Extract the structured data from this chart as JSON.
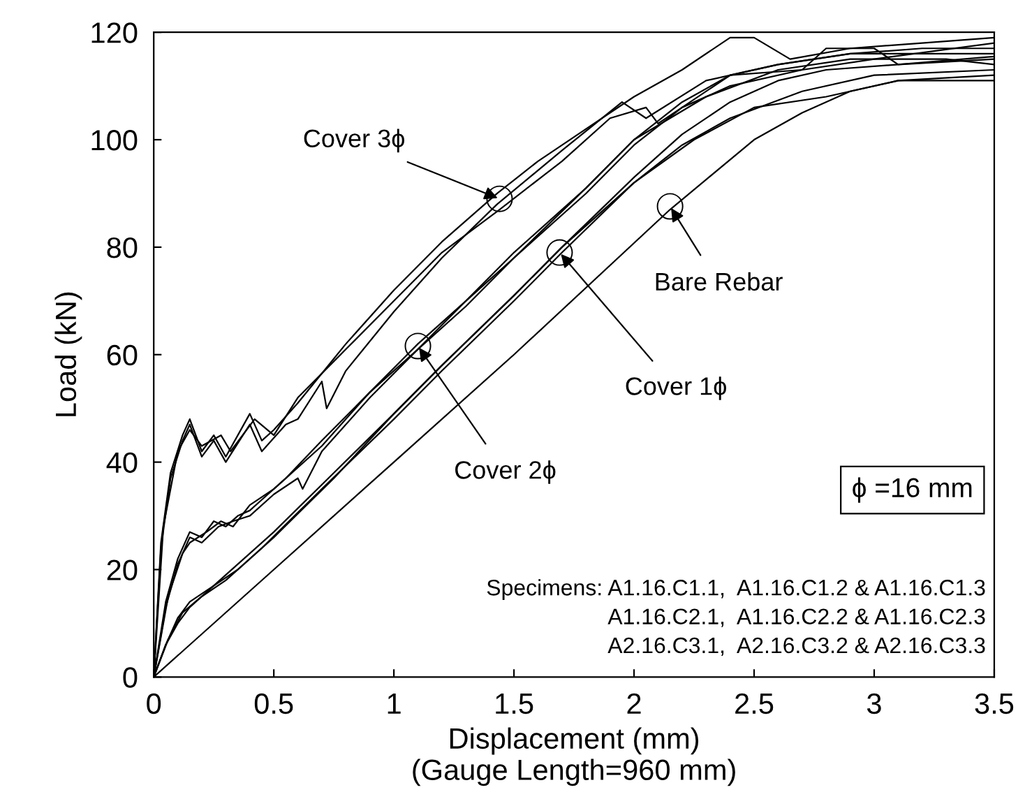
{
  "chart_data": {
    "type": "line",
    "xlabel": "Displacement (mm)\n(Gauge Length=960 mm)",
    "ylabel": "Load (kN)",
    "xlim": [
      0,
      3.5
    ],
    "ylim": [
      0,
      120
    ],
    "xticks": [
      0,
      0.5,
      1,
      1.5,
      2,
      2.5,
      3,
      3.5
    ],
    "yticks": [
      0,
      20,
      40,
      60,
      80,
      100,
      120
    ],
    "grid": false,
    "legend": false,
    "marker": "none",
    "line_style": "solid",
    "series": [
      {
        "color": "#000000",
        "x": [
          0,
          0.03,
          0.07,
          0.12,
          0.15,
          0.2,
          0.25,
          0.3,
          0.4,
          0.45,
          0.5,
          0.6,
          0.8,
          1.0,
          1.2,
          1.43,
          1.6,
          1.8,
          2.0,
          2.2,
          2.4,
          2.5,
          2.65,
          2.9,
          3.2,
          3.5
        ],
        "values": [
          0,
          25,
          38,
          45,
          48,
          42,
          45,
          41,
          49,
          44,
          46,
          51,
          62,
          72,
          81,
          90,
          96,
          102,
          108,
          113,
          119,
          119,
          115,
          117,
          118,
          119
        ]
      },
      {
        "color": "#000000",
        "x": [
          0,
          0.03,
          0.07,
          0.12,
          0.15,
          0.2,
          0.25,
          0.3,
          0.4,
          0.45,
          0.55,
          0.6,
          0.7,
          0.72,
          0.8,
          1.0,
          1.2,
          1.43,
          1.7,
          1.95,
          2.05,
          2.3,
          2.6,
          2.9,
          3.5
        ],
        "values": [
          0,
          24,
          37,
          44,
          47,
          41,
          44,
          40,
          47,
          42,
          47,
          48,
          55,
          50,
          57,
          68,
          78,
          88,
          98,
          107,
          104,
          111,
          114,
          116,
          116
        ]
      },
      {
        "color": "#000000",
        "x": [
          0,
          0.04,
          0.1,
          0.15,
          0.2,
          0.28,
          0.32,
          0.42,
          0.5,
          0.6,
          0.8,
          1.0,
          1.2,
          1.44,
          1.7,
          1.9,
          2.05,
          2.1,
          2.4,
          2.7,
          2.8,
          3.0,
          3.1,
          3.5
        ],
        "values": [
          0,
          28,
          42,
          46,
          43,
          45,
          42,
          48,
          45,
          52,
          61,
          70,
          79,
          87,
          96,
          104,
          106,
          103,
          112,
          113,
          117,
          117,
          114,
          115
        ]
      },
      {
        "color": "#000000",
        "x": [
          0,
          0.05,
          0.1,
          0.15,
          0.2,
          0.25,
          0.3,
          0.35,
          0.4,
          0.45,
          0.55,
          0.7,
          0.9,
          1.1,
          1.3,
          1.5,
          1.8,
          2.0,
          2.2,
          2.4,
          2.6,
          2.9,
          3.2,
          3.5
        ],
        "values": [
          0,
          14,
          22,
          27,
          26,
          29,
          28,
          30,
          31,
          33,
          37,
          44,
          53,
          62,
          70,
          79,
          91,
          100,
          107,
          112,
          114,
          116,
          117,
          117
        ]
      },
      {
        "color": "#000000",
        "x": [
          0,
          0.05,
          0.1,
          0.15,
          0.2,
          0.27,
          0.33,
          0.4,
          0.5,
          0.6,
          0.62,
          0.7,
          0.9,
          1.1,
          1.3,
          1.5,
          1.8,
          2.0,
          2.2,
          2.4,
          2.7,
          3.0,
          3.5
        ],
        "values": [
          0,
          13,
          21,
          26,
          25,
          28,
          29,
          30,
          34,
          37,
          35,
          42,
          52,
          61,
          69,
          78,
          90,
          99,
          106,
          110,
          113,
          115,
          118
        ]
      },
      {
        "color": "#000000",
        "x": [
          0,
          0.06,
          0.12,
          0.15,
          0.22,
          0.28,
          0.33,
          0.4,
          0.5,
          0.7,
          0.9,
          1.1,
          1.3,
          1.5,
          1.8,
          2.0,
          2.3,
          2.6,
          2.9,
          3.3,
          3.5
        ],
        "values": [
          0,
          15,
          23,
          25,
          27,
          29,
          28,
          32,
          35,
          43,
          53,
          61,
          70,
          78,
          91,
          100,
          108,
          113,
          115,
          115,
          114
        ]
      },
      {
        "color": "#000000",
        "x": [
          0,
          0.05,
          0.1,
          0.15,
          0.25,
          0.35,
          0.5,
          0.75,
          1.0,
          1.2,
          1.5,
          1.7,
          2.0,
          2.2,
          2.4,
          2.6,
          2.8,
          3.1,
          3.5
        ],
        "values": [
          0,
          6,
          11,
          14,
          17,
          20,
          26,
          37,
          49,
          58,
          71,
          80,
          93,
          101,
          107,
          111,
          113,
          114,
          115.5
        ]
      },
      {
        "color": "#000000",
        "x": [
          0,
          0.06,
          0.12,
          0.2,
          0.3,
          0.45,
          0.7,
          1.0,
          1.2,
          1.5,
          1.7,
          2.0,
          2.2,
          2.4,
          2.7,
          3.0,
          3.5
        ],
        "values": [
          0,
          7,
          12,
          15,
          18,
          24,
          35,
          48,
          57,
          70,
          79,
          92,
          99,
          104,
          109,
          112,
          113
        ]
      },
      {
        "color": "#000000",
        "x": [
          0,
          0.05,
          0.1,
          0.15,
          0.3,
          0.5,
          0.75,
          1.0,
          1.2,
          1.5,
          1.7,
          2.0,
          2.25,
          2.5,
          2.8,
          3.1,
          3.5
        ],
        "values": [
          0,
          6,
          10,
          13,
          19,
          27,
          38,
          49,
          58,
          71,
          80,
          92,
          100,
          106,
          108,
          111,
          111
        ]
      },
      {
        "color": "#000000",
        "x": [
          0,
          0.5,
          1.0,
          1.5,
          2.15,
          2.5,
          2.7,
          2.9,
          3.1,
          3.5
        ],
        "values": [
          0,
          20,
          40,
          60,
          87,
          100,
          105,
          109,
          111,
          112
        ]
      }
    ],
    "annotations": [
      {
        "text": "Cover 3ϕ",
        "x": 1.44,
        "y": 89
      },
      {
        "text": "Cover 2ϕ",
        "x": 1.1,
        "y": 61.6
      },
      {
        "text": "Cover 1ϕ",
        "x": 1.69,
        "y": 79
      },
      {
        "text": "Bare Rebar",
        "x": 2.15,
        "y": 87.6
      },
      "ϕ =16 mm",
      "Specimens: A1.16.C1.1,  A1.16.C1.2 & A1.16.C1.3\nA1.16.C2.1,  A1.16.C2.2 & A1.16.C2.3\nA2.16.C3.1,  A2.16.C3.2 & A2.16.C3.3"
    ]
  }
}
